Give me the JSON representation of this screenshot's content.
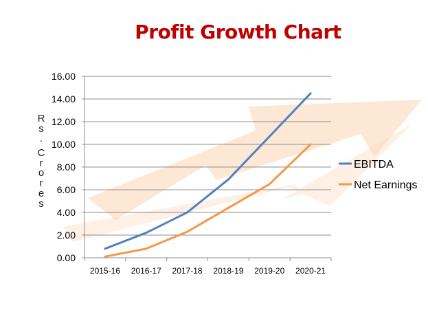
{
  "chart_data": {
    "type": "line",
    "title": "Profit Growth Chart",
    "ylabel": "Rs. Crores",
    "xlabel": "",
    "categories": [
      "2015-16",
      "2016-17",
      "2017-18",
      "2018-19",
      "2019-20",
      "2020-21"
    ],
    "ylim": [
      0,
      16
    ],
    "yticks": [
      "0.00",
      "2.00",
      "4.00",
      "6.00",
      "8.00",
      "10.00",
      "12.00",
      "14.00",
      "16.00"
    ],
    "grid": true,
    "legend": "right",
    "series": [
      {
        "name": "EBITDA",
        "color": "#4F81BD",
        "values": [
          0.8,
          2.2,
          4.0,
          6.9,
          10.7,
          14.5
        ]
      },
      {
        "name": "Net Earnings",
        "color": "#F79646",
        "values": [
          0.1,
          0.8,
          2.3,
          4.4,
          6.5,
          10.0
        ]
      }
    ]
  },
  "colors": {
    "title": "#C00000",
    "grid": "#8C8C8C",
    "arrow": "#FBD5B5"
  }
}
